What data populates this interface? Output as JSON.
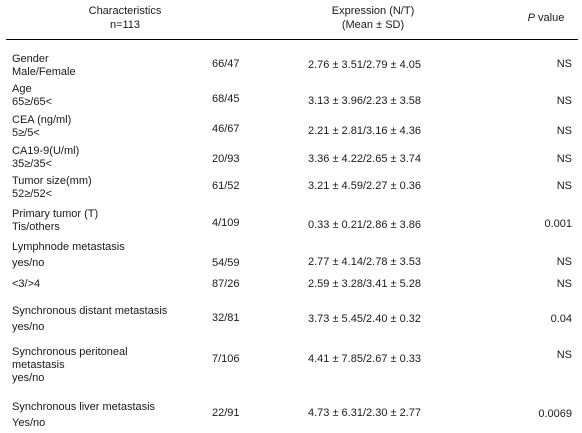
{
  "header": {
    "characteristics": "Characteristics",
    "n": "n=113",
    "expression": "Expression (N/T)",
    "mean_sd": "(Mean ± SD)",
    "p": "P",
    "value": " value"
  },
  "rows": [
    {
      "label1": "Gender",
      "label2": " Male/Female",
      "label3": "",
      "n": "66/47",
      "expr": "2.76 ± 3.51/2.79 ± 4.05",
      "p": "NS"
    },
    {
      "label1": "Age",
      "label2": " 65≥/65<",
      "label3": "",
      "n": "68/45",
      "expr": "3.13 ± 3.96/2.23 ± 3.58",
      "p": "NS"
    },
    {
      "label1": "CEA (ng/ml)",
      "label2": " 5≥/5<",
      "label3": "",
      "n": "46/67",
      "expr": "2.21 ± 2.81/3.16 ± 4.36",
      "p": "NS"
    },
    {
      "label1": "CA19-9(U/ml)",
      "label2": " 35≥/35<",
      "label3": "",
      "n": "20/93",
      "expr": "3.36 ± 4.22/2.65 ± 3.74",
      "p": "NS"
    },
    {
      "label1": "Tumor size(mm)",
      "label2": " 52≥/52<",
      "label3": "",
      "n": "61/52",
      "expr": "3.21 ± 4.59/2.27 ± 0.36",
      "p": "NS"
    },
    {
      "label1": "Primary tumor (T)",
      "label2": "Tis/others",
      "label3": "",
      "n": "4/109",
      "expr": "0.33 ± 0.21/2.86 ± 3.86",
      "p": "0.001"
    },
    {
      "label1": "Lymphnode metastasis",
      "label2": "yes/no",
      "label3": "",
      "n": "54/59",
      "expr": "2.77 ± 4.14/2.78 ± 3.53",
      "p": "NS"
    },
    {
      "label1": "<3/>4",
      "label2": "",
      "label3": "",
      "n": "87/26",
      "expr": "2.59 ± 3.28/3.41 ± 5.28",
      "p": "NS"
    },
    {
      "label1": "Synchronous distant metastasis",
      "label2": "yes/no",
      "label3": "",
      "n": "32/81",
      "expr": "3.73 ± 5.45/2.40 ± 0.32",
      "p": "0.04"
    },
    {
      "label1": "Synchronous peritoneal",
      "label2": "metastasis",
      "label3": " yes/no",
      "n": "7/106",
      "expr": "4.41 ± 7.85/2.67 ± 0.33",
      "p": "NS"
    },
    {
      "label1": "Synchronous liver metastasis",
      "label2": "Yes/no",
      "label3": "",
      "n": "22/91",
      "expr": "4.73 ± 6.31/2.30 ± 2.77",
      "p": "0.0069"
    }
  ]
}
